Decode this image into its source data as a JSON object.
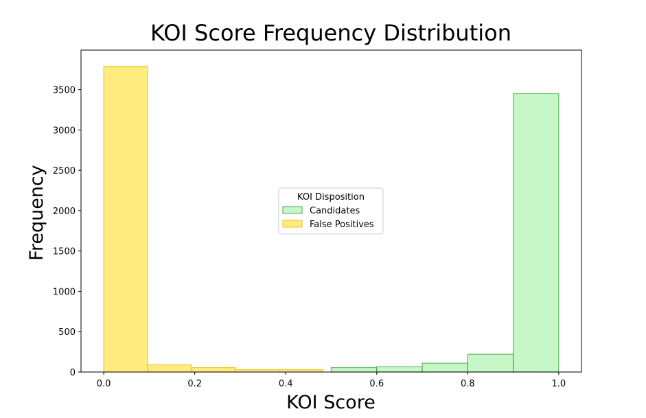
{
  "chart_data": {
    "type": "bar",
    "title": "KOI Score Frequency Distribution",
    "xlabel": "KOI Score",
    "ylabel": "Frequency",
    "xlim": [
      -0.05,
      1.05
    ],
    "ylim": [
      0,
      3990
    ],
    "xticks": [
      0.0,
      0.2,
      0.4,
      0.6,
      0.8,
      1.0
    ],
    "xtick_labels": [
      "0.0",
      "0.2",
      "0.4",
      "0.6",
      "0.8",
      "1.0"
    ],
    "yticks": [
      0,
      500,
      1000,
      1500,
      2000,
      2500,
      3000,
      3500
    ],
    "ytick_labels": [
      "0",
      "500",
      "1000",
      "1500",
      "2000",
      "2500",
      "3000",
      "3500"
    ],
    "grid": false,
    "legend": {
      "title": "KOI Disposition",
      "placement": "center"
    },
    "series": [
      {
        "name": "Candidates",
        "color": "#90ee90",
        "edge_color": "#2ca02c",
        "bins": [
          {
            "x0": 0.5,
            "x1": 0.6,
            "value": 55
          },
          {
            "x0": 0.6,
            "x1": 0.7,
            "value": 65
          },
          {
            "x0": 0.7,
            "x1": 0.8,
            "value": 110
          },
          {
            "x0": 0.8,
            "x1": 0.9,
            "value": 220
          },
          {
            "x0": 0.9,
            "x1": 1.0,
            "value": 3450
          }
        ]
      },
      {
        "name": "False Positives",
        "color": "#ffd700",
        "edge_color": "#e6b800",
        "bins": [
          {
            "x0": 0.0,
            "x1": 0.0964,
            "value": 3790
          },
          {
            "x0": 0.0964,
            "x1": 0.1928,
            "value": 90
          },
          {
            "x0": 0.1928,
            "x1": 0.2892,
            "value": 55
          },
          {
            "x0": 0.2892,
            "x1": 0.3856,
            "value": 30
          },
          {
            "x0": 0.3856,
            "x1": 0.482,
            "value": 30
          }
        ]
      }
    ]
  }
}
